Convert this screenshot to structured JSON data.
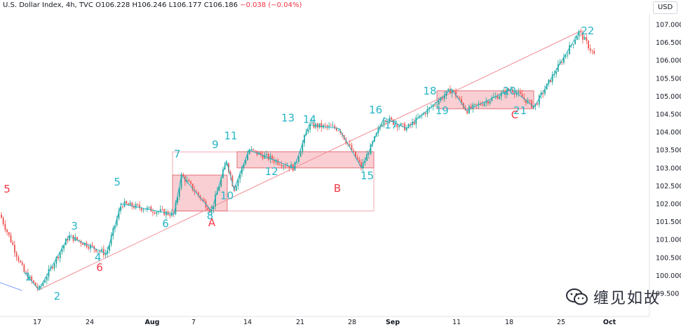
{
  "header": {
    "symbol": "U.S. Dollar Index, 4h, TVC",
    "o_label": "O",
    "o_value": "106.228",
    "h_label": "H",
    "h_value": "106.246",
    "l_label": "L",
    "l_value": "106.177",
    "c_label": "C",
    "c_value": "106.186",
    "change": "−0.038 (−0.04%)"
  },
  "currency": "USD",
  "watermark": "缠见如故",
  "colors": {
    "up": "#26a69a",
    "down": "#ef5350",
    "wave": "#26b5c6",
    "wave_label": "#26b5c6",
    "red_label": "#f23645",
    "trend": "#f28b93",
    "zone_fill": "#f8c7cb",
    "zone_border": "#e0707a",
    "box_outline": "#f4a9b0",
    "axis_text": "#131722"
  },
  "chart_data": {
    "type": "candlestick",
    "ylim": [
      99.5,
      107.1
    ],
    "yticks": [
      "107.000",
      "106.500",
      "106.000",
      "105.500",
      "105.000",
      "104.500",
      "104.000",
      "103.500",
      "103.000",
      "102.500",
      "102.000",
      "101.500",
      "101.000",
      "100.500",
      "100.000",
      "99.500"
    ],
    "xtick_labels": [
      "17",
      "24",
      "Aug",
      "7",
      "14",
      "21",
      "28",
      "Sep",
      "11",
      "18",
      "25",
      "Oct"
    ],
    "wave_points": [
      {
        "label": "1",
        "date": "Jul 16",
        "price": 100.1
      },
      {
        "label": "2",
        "date": "Jul 18",
        "price": 99.6
      },
      {
        "label": "3",
        "date": "Jul 22",
        "price": 101.1
      },
      {
        "label": "4",
        "date": "Jul 27",
        "price": 100.6
      },
      {
        "label": "5",
        "date": "Jul 29",
        "price": 102.0
      },
      {
        "label": "6",
        "date": "Aug 5",
        "price": 101.7
      },
      {
        "label": "7",
        "date": "Aug 6",
        "price": 102.8
      },
      {
        "label": "8",
        "date": "Aug 10",
        "price": 101.8
      },
      {
        "label": "9",
        "date": "Aug 12",
        "price": 103.2
      },
      {
        "label": "10",
        "date": "Aug 13",
        "price": 102.4
      },
      {
        "label": "11",
        "date": "Aug 15",
        "price": 103.5
      },
      {
        "label": "12",
        "date": "Aug 21",
        "price": 103.0
      },
      {
        "label": "13",
        "date": "Aug 23",
        "price": 104.2
      },
      {
        "label": "14",
        "date": "Aug 27",
        "price": 104.1
      },
      {
        "label": "15",
        "date": "Aug 30",
        "price": 103.0
      },
      {
        "label": "16",
        "date": "Sep 2",
        "price": 104.4
      },
      {
        "label": "17",
        "date": "Sep 5",
        "price": 104.1
      },
      {
        "label": "18",
        "date": "Sep 11",
        "price": 105.2
      },
      {
        "label": "19",
        "date": "Sep 13",
        "price": 104.6
      },
      {
        "label": "20",
        "date": "Sep 19",
        "price": 105.2
      },
      {
        "label": "21",
        "date": "Sep 22",
        "price": 104.7
      },
      {
        "label": "22",
        "date": "Sep 28",
        "price": 106.8
      }
    ],
    "zone_labels": [
      "A",
      "B",
      "C",
      "5",
      "6"
    ],
    "zones": [
      {
        "label": "A",
        "high": 102.8,
        "low": 101.8
      },
      {
        "label": "B",
        "high": 103.45,
        "low": 103.0
      },
      {
        "label": "C",
        "high": 105.15,
        "low": 104.65
      }
    ]
  }
}
